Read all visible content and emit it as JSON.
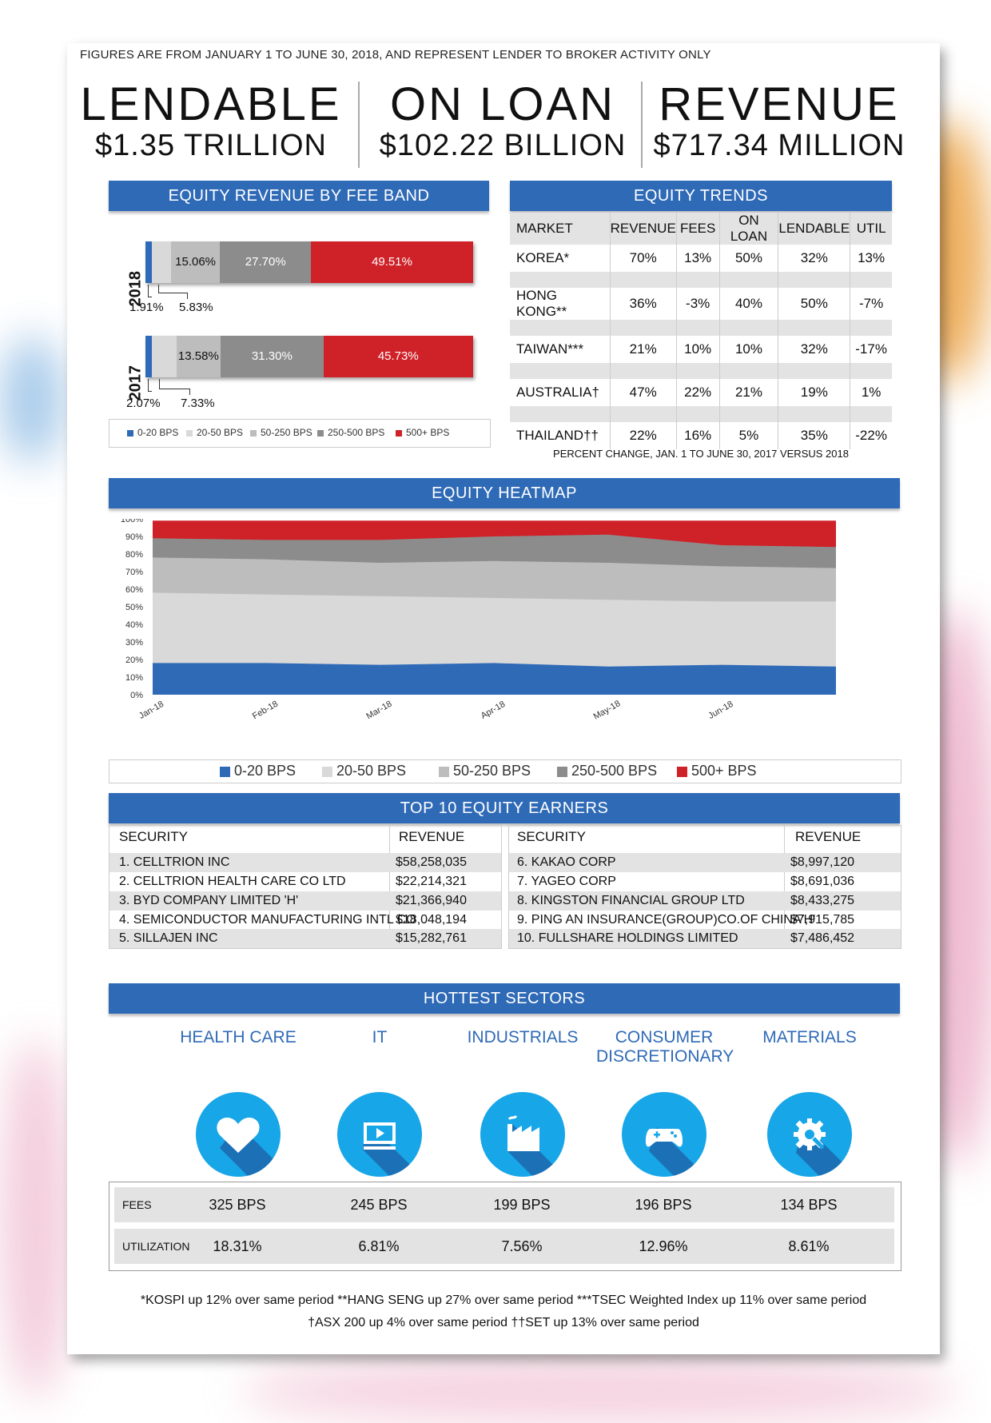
{
  "header_note": "FIGURES ARE FROM JANUARY 1 TO JUNE 30, 2018, AND REPRESENT LENDER TO BROKER ACTIVITY ONLY",
  "kpis": [
    {
      "title": "LENDABLE",
      "value": "$1.35 TRILLION"
    },
    {
      "title": "ON LOAN",
      "value": "$102.22 BILLION"
    },
    {
      "title": "REVENUE",
      "value": "$717.34 MILLION"
    }
  ],
  "fee_band": {
    "title": "EQUITY REVENUE BY FEE BAND",
    "legend": [
      "0-20 BPS",
      "20-50 BPS",
      "50-250 BPS",
      "250-500 BPS",
      "500+ BPS"
    ],
    "colors": [
      "#2f6ab7",
      "#d9d9d9",
      "#bdbdbd",
      "#8c8c8c",
      "#cf2128"
    ]
  },
  "trends": {
    "title": "EQUITY TRENDS",
    "headers": [
      "MARKET",
      "REVENUE",
      "FEES",
      "ON LOAN",
      "LENDABLE",
      "UTIL"
    ],
    "rows": [
      [
        "KOREA*",
        "70%",
        "13%",
        "50%",
        "32%",
        "13%"
      ],
      [
        "HONG KONG**",
        "36%",
        "-3%",
        "40%",
        "50%",
        "-7%"
      ],
      [
        "TAIWAN***",
        "21%",
        "10%",
        "10%",
        "32%",
        "-17%"
      ],
      [
        "AUSTRALIA†",
        "47%",
        "22%",
        "21%",
        "19%",
        "1%"
      ],
      [
        "THAILAND††",
        "22%",
        "16%",
        "5%",
        "35%",
        "-22%"
      ]
    ],
    "caption": "PERCENT CHANGE, JAN. 1 TO JUNE 30, 2017 VERSUS 2018"
  },
  "heatmap": {
    "title": "EQUITY HEATMAP",
    "legend": [
      "0-20 BPS",
      "20-50 BPS",
      "50-250 BPS",
      "250-500 BPS",
      "500+ BPS"
    ]
  },
  "earners": {
    "title": "TOP 10 EQUITY EARNERS",
    "col_security": "SECURITY",
    "col_revenue": "REVENUE",
    "left": [
      [
        "1.  CELLTRION INC",
        "$58,258,035"
      ],
      [
        "2.  CELLTRION HEALTH CARE CO LTD",
        "$22,214,321"
      ],
      [
        "3.  BYD COMPANY LIMITED 'H'",
        "$21,366,940"
      ],
      [
        "4.  SEMICONDUCTOR MANUFACTURING INTL CO",
        "$18,048,194"
      ],
      [
        "5.  SILLAJEN INC",
        "$15,282,761"
      ]
    ],
    "right": [
      [
        "6.  KAKAO CORP",
        "$8,997,120"
      ],
      [
        "7.  YAGEO CORP",
        "$8,691,036"
      ],
      [
        "8.  KINGSTON FINANCIAL GROUP LTD",
        "$8,433,275"
      ],
      [
        "9.  PING AN INSURANCE(GROUP)CO.OF CHINA'H'",
        "$7,915,785"
      ],
      [
        "10. FULLSHARE HOLDINGS LIMITED",
        "$7,486,452"
      ]
    ]
  },
  "sectors": {
    "title": "HOTTEST SECTORS",
    "row_fees": "FEES",
    "row_util": "UTILIZATION",
    "items": [
      {
        "name": "HEALTH CARE",
        "name2": "",
        "icon": "heart-icon",
        "fees": "325 BPS",
        "util": "18.31%"
      },
      {
        "name": "IT",
        "name2": "",
        "icon": "video-player-icon",
        "fees": "245 BPS",
        "util": "6.81%"
      },
      {
        "name": "INDUSTRIALS",
        "name2": "",
        "icon": "factory-icon",
        "fees": "199 BPS",
        "util": "7.56%"
      },
      {
        "name": "CONSUMER",
        "name2": "DISCRETIONARY",
        "icon": "gamepad-icon",
        "fees": "196 BPS",
        "util": "12.96%"
      },
      {
        "name": "MATERIALS",
        "name2": "",
        "icon": "gear-wrench-icon",
        "fees": "134 BPS",
        "util": "8.61%"
      }
    ]
  },
  "footnotes": [
    "*KOSPI up 12% over same period   **HANG SENG up 27% over same period   ***TSEC Weighted Index up 11% over same period",
    "†ASX 200 up 4% over same period   ††SET up 13% over same period"
  ],
  "chart_data": [
    {
      "type": "bar",
      "title": "EQUITY REVENUE BY FEE BAND",
      "stacked": true,
      "orientation": "horizontal",
      "categories": [
        "2018",
        "2017"
      ],
      "series": [
        {
          "name": "0-20 BPS",
          "values": [
            1.91,
            2.07
          ],
          "labels": [
            "1.91%",
            "2.07%"
          ]
        },
        {
          "name": "20-50 BPS",
          "values": [
            5.83,
            7.33
          ],
          "labels": [
            "5.83%",
            "7.33%"
          ]
        },
        {
          "name": "50-250 BPS",
          "values": [
            15.06,
            13.58
          ],
          "labels": [
            "15.06%",
            "13.58%"
          ]
        },
        {
          "name": "250-500 BPS",
          "values": [
            27.7,
            31.3
          ],
          "labels": [
            "27.70%",
            "31.30%"
          ]
        },
        {
          "name": "500+ BPS",
          "values": [
            49.51,
            45.73
          ],
          "labels": [
            "49.51%",
            "45.73%"
          ]
        }
      ]
    },
    {
      "type": "area",
      "title": "EQUITY HEATMAP",
      "stacked": true,
      "ylim": [
        0,
        100
      ],
      "yticks": [
        "0%",
        "10%",
        "20%",
        "30%",
        "40%",
        "50%",
        "60%",
        "70%",
        "80%",
        "90%",
        "100%"
      ],
      "x_labels": [
        "Jan-18",
        "Feb-18",
        "Mar-18",
        "Apr-18",
        "May-18",
        "Jun-18"
      ],
      "x": [
        "Jan-18",
        "Feb-18",
        "Mar-18",
        "Apr-18",
        "May-18",
        "Jun-18",
        "end"
      ],
      "series": [
        {
          "name": "0-20 BPS",
          "values": [
            18,
            18,
            17,
            18,
            16,
            17,
            16
          ]
        },
        {
          "name": "20-50 BPS",
          "values": [
            58,
            57,
            56,
            55,
            54,
            53,
            53
          ]
        },
        {
          "name": "50-250 BPS",
          "values": [
            78,
            77,
            75,
            76,
            75,
            73,
            72
          ]
        },
        {
          "name": "250-500 BPS",
          "values": [
            89,
            88,
            88,
            90,
            91,
            85,
            84
          ]
        },
        {
          "name": "500+ BPS",
          "values": [
            99,
            99,
            99,
            99,
            99,
            99,
            99
          ]
        }
      ]
    }
  ]
}
